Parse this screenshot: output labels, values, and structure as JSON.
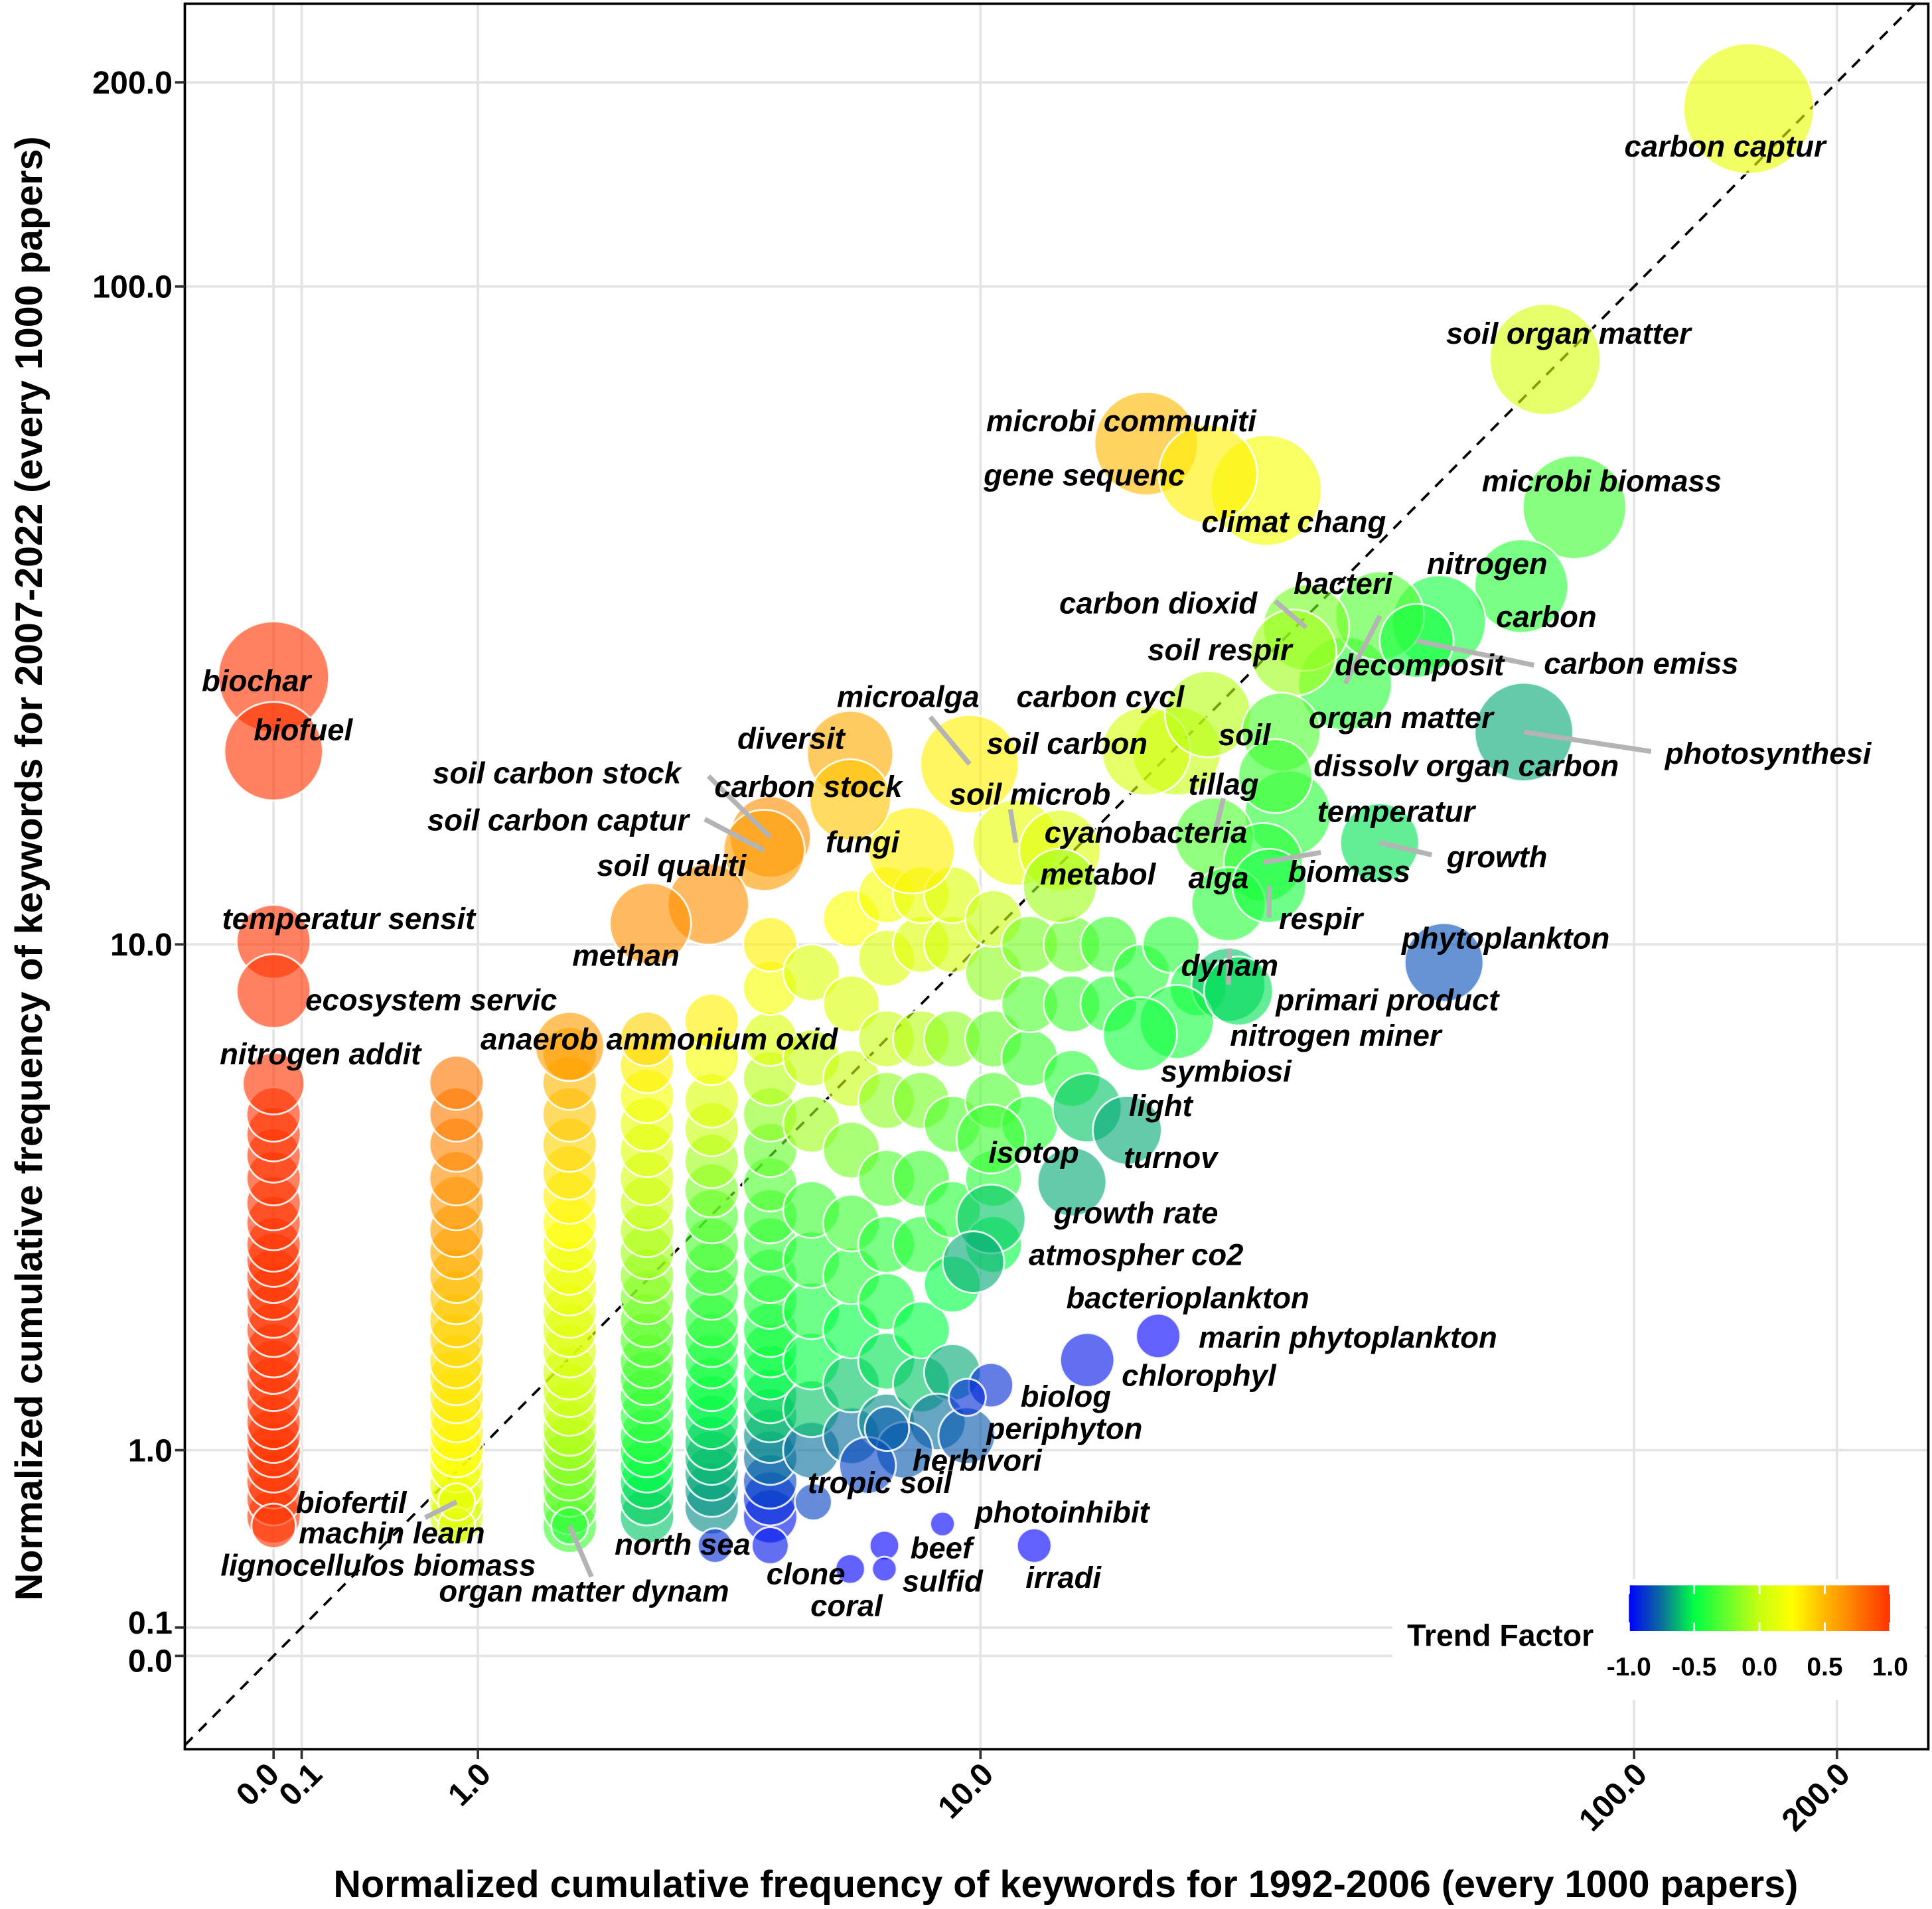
{
  "chart_data": {
    "type": "scatter",
    "title": "",
    "xlabel": "Normalized cumulative frequency of keywords for 1992-2006 (every 1000 papers)",
    "ylabel": "Normalized cumulative frequency of keywords for 2007-2022 (every 1000 papers)",
    "x_scale": "log10(x+1)",
    "y_scale": "log10(x+1)",
    "xlim": [
      -0.26,
      273
    ],
    "ylim": [
      -0.27,
      261
    ],
    "xticks": [
      0,
      0.1,
      1,
      10,
      100,
      200
    ],
    "xtick_labels": [
      "0.0",
      "0.1",
      "1.0",
      "10.0",
      "100.0",
      "200.0"
    ],
    "yticks": [
      0,
      0.1,
      1,
      10,
      100,
      200
    ],
    "ytick_labels": [
      "0.0",
      "0.1",
      "1.0",
      "10.0",
      "100.0",
      "200.0"
    ],
    "grid": true,
    "reference_line": "y = x (dashed)",
    "colorbar": {
      "title": "Trend Factor",
      "range": [
        -1,
        1
      ],
      "ticks": [
        -1,
        -0.5,
        0,
        0.5,
        1
      ],
      "tick_labels": [
        "-1.0",
        "-0.5",
        "0.0",
        "0.5",
        "1.0"
      ],
      "placement": "bottom-right",
      "colors": [
        "#0000ff",
        "#0a6f9c",
        "#00ff44",
        "#c8ff10",
        "#ffff00",
        "#ffb800",
        "#ff3300"
      ]
    },
    "labeled_points": [
      {
        "label": "carbon captur",
        "x": 148,
        "y": 183,
        "size": 10.6,
        "trend": 0.15
      },
      {
        "label": "soil organ matter",
        "x": 73.7,
        "y": 78,
        "size": 9,
        "trend": 0.05
      },
      {
        "label": "microbi biomass",
        "x": 81.5,
        "y": 47,
        "size": 8.4,
        "trend": -0.35
      },
      {
        "label": "microbi communiti",
        "x": 18.3,
        "y": 58.5,
        "size": 8.4,
        "trend": 0.5
      },
      {
        "label": "gene sequenc",
        "x": 22.8,
        "y": 52.7,
        "size": 8,
        "trend": 0.3
      },
      {
        "label": "climat chang",
        "x": 28,
        "y": 49.8,
        "size": 9,
        "trend": 0.2
      },
      {
        "label": "nitrogen",
        "x": 67.9,
        "y": 35.8,
        "size": 7.6,
        "trend": -0.4
      },
      {
        "label": "bacteri",
        "x": 41.6,
        "y": 32.3,
        "size": 7.2,
        "trend": -0.3
      },
      {
        "label": "carbon",
        "x": 51.1,
        "y": 31.6,
        "size": 7.6,
        "trend": -0.45
      },
      {
        "label": "carbon dioxid",
        "x": 32.2,
        "y": 31,
        "size": 7,
        "trend": -0.2
      },
      {
        "label": "soil respir",
        "x": 30.8,
        "y": 28.4,
        "size": 7,
        "trend": -0.1
      },
      {
        "label": "decomposit",
        "x": 36.9,
        "y": 25.5,
        "size": 7.6,
        "trend": -0.4
      },
      {
        "label": "carbon emiss",
        "x": 47.3,
        "y": 29.6,
        "size": 6,
        "trend": -0.45
      },
      {
        "label": "carbon cycl",
        "x": 22.8,
        "y": 22.9,
        "size": 7,
        "trend": -0.05
      },
      {
        "label": "organ matter",
        "x": 29.5,
        "y": 21.5,
        "size": 6.4,
        "trend": -0.3
      },
      {
        "label": "soil",
        "x": 20.4,
        "y": 20.1,
        "size": 7.2,
        "trend": 0.0
      },
      {
        "label": "photosynthesi",
        "x": 68.5,
        "y": 21.5,
        "size": 8,
        "trend": -0.65
      },
      {
        "label": "dissolv organ carbon",
        "x": 28.9,
        "y": 18.4,
        "size": 6,
        "trend": -0.35
      },
      {
        "label": "microalga",
        "x": 9.6,
        "y": 19.2,
        "size": 8,
        "trend": 0.3
      },
      {
        "label": "soil carbon",
        "x": 18.3,
        "y": 20.1,
        "size": 7.2,
        "trend": 0.05
      },
      {
        "label": "diversit",
        "x": 6.07,
        "y": 19.9,
        "size": 7,
        "trend": 0.55
      },
      {
        "label": "carbon stock",
        "x": 6.07,
        "y": 16.9,
        "size": 6.6,
        "trend": 0.45
      },
      {
        "label": "soil carbon stock",
        "x": 4.39,
        "y": 14.8,
        "size": 6.6,
        "trend": 0.65
      },
      {
        "label": "soil carbon captur",
        "x": 4.28,
        "y": 14.1,
        "size": 6.6,
        "trend": 0.6
      },
      {
        "label": "soil microb",
        "x": 11.4,
        "y": 14.5,
        "size": 7,
        "trend": 0.15
      },
      {
        "label": "fungi",
        "x": 7.71,
        "y": 14.1,
        "size": 7,
        "trend": 0.3
      },
      {
        "label": "cyanobacteria",
        "x": 13.4,
        "y": 14.1,
        "size": 6.6,
        "trend": 0.1
      },
      {
        "label": "soil qualiti",
        "x": 3.37,
        "y": 11.6,
        "size": 6.6,
        "trend": 0.65
      },
      {
        "label": "methan",
        "x": 2.59,
        "y": 10.8,
        "size": 6.6,
        "trend": 0.65
      },
      {
        "label": "tillag",
        "x": 23.3,
        "y": 14.8,
        "size": 6.4,
        "trend": -0.3
      },
      {
        "label": "temperatur",
        "x": 30.2,
        "y": 16.1,
        "size": 7,
        "trend": -0.4
      },
      {
        "label": "growth",
        "x": 41.6,
        "y": 14.5,
        "size": 6.4,
        "trend": -0.55
      },
      {
        "label": "biomass",
        "x": 27.7,
        "y": 13.5,
        "size": 6.4,
        "trend": -0.4
      },
      {
        "label": "metabol",
        "x": 13.4,
        "y": 12.4,
        "size": 6,
        "trend": -0.1
      },
      {
        "label": "alga",
        "x": 24.5,
        "y": 11.6,
        "size": 6,
        "trend": -0.4
      },
      {
        "label": "respir",
        "x": 28.3,
        "y": 12.4,
        "size": 6,
        "trend": -0.45
      },
      {
        "label": "phytoplankton",
        "x": 52,
        "y": 9.35,
        "size": 6.4,
        "trend": -0.82
      },
      {
        "label": "dynam",
        "x": 24.5,
        "y": 8.6,
        "size": 6,
        "trend": -0.6
      },
      {
        "label": "primari product",
        "x": 25.4,
        "y": 8.4,
        "size": 5.6,
        "trend": -0.55
      },
      {
        "label": "nitrogen miner",
        "x": 20.4,
        "y": 7.47,
        "size": 6,
        "trend": -0.45
      },
      {
        "label": "symbiosi",
        "x": 17.9,
        "y": 7.13,
        "size": 6,
        "trend": -0.45
      },
      {
        "label": "light",
        "x": 14.8,
        "y": 5.34,
        "size": 5.6,
        "trend": -0.6
      },
      {
        "label": "turnov",
        "x": 17.1,
        "y": 4.88,
        "size": 5.6,
        "trend": -0.65
      },
      {
        "label": "isotop",
        "x": 10.4,
        "y": 4.71,
        "size": 5.6,
        "trend": -0.35
      },
      {
        "label": "growth rate",
        "x": 14,
        "y": 3.94,
        "size": 5.6,
        "trend": -0.65
      },
      {
        "label": "atmospher co2",
        "x": 10.4,
        "y": 3.36,
        "size": 5.6,
        "trend": -0.6
      },
      {
        "label": "bacterioplankton",
        "x": 9.74,
        "y": 2.77,
        "size": 5,
        "trend": -0.65
      },
      {
        "label": "marin phytoplankton",
        "x": 19.1,
        "y": 1.94,
        "size": 3.6,
        "trend": -1.0
      },
      {
        "label": "chlorophyl",
        "x": 14.8,
        "y": 1.71,
        "size": 4.4,
        "trend": -0.95
      },
      {
        "label": "biolog",
        "x": 10.4,
        "y": 1.49,
        "size": 3.6,
        "trend": -0.9
      },
      {
        "label": "periphyton",
        "x": 9.52,
        "y": 1.39,
        "size": 3,
        "trend": -0.9
      },
      {
        "label": "herbivori",
        "x": 7.01,
        "y": 1.15,
        "size": 3.6,
        "trend": -0.8
      },
      {
        "label": "tropic soil",
        "x": 5.24,
        "y": 0.68,
        "size": 3,
        "trend": -0.85
      },
      {
        "label": "photoinhibit",
        "x": 8.67,
        "y": 0.56,
        "size": 2,
        "trend": -1.0
      },
      {
        "label": "beef",
        "x": 6.94,
        "y": 0.45,
        "size": 2.4,
        "trend": -1.0
      },
      {
        "label": "sulfid",
        "x": 6.94,
        "y": 0.34,
        "size": 2,
        "trend": -1.0
      },
      {
        "label": "coral",
        "x": 6.07,
        "y": 0.34,
        "size": 2.4,
        "trend": -1.0
      },
      {
        "label": "clone",
        "x": 4.39,
        "y": 0.45,
        "size": 3,
        "trend": -0.95
      },
      {
        "label": "north sea",
        "x": 3.47,
        "y": 0.45,
        "size": 2.8,
        "trend": -0.9
      },
      {
        "label": "irradi",
        "x": 12.2,
        "y": 0.45,
        "size": 2.8,
        "trend": -1.0
      },
      {
        "label": "biochar",
        "x": 0.0,
        "y": 26.1,
        "size": 9,
        "trend": 1.0
      },
      {
        "label": "biofuel",
        "x": 0.0,
        "y": 20.1,
        "size": 8,
        "trend": 1.0
      },
      {
        "label": "temperatur sensit",
        "x": 0.0,
        "y": 10.1,
        "size": 6,
        "trend": 1.0
      },
      {
        "label": "ecosystem servic",
        "x": 0.0,
        "y": 8.4,
        "size": 6,
        "trend": 1.0
      },
      {
        "label": "nitrogen addit",
        "x": 0.0,
        "y": 5.88,
        "size": 5,
        "trend": 1.0
      },
      {
        "label": "anaerob ammonium oxid",
        "x": 1.73,
        "y": 6.8,
        "size": 5.6,
        "trend": 0.6
      },
      {
        "label": "biofertil",
        "x": 0.86,
        "y": 0.55,
        "size": 3,
        "trend": 0.1
      },
      {
        "label": "machin learn",
        "x": 0.86,
        "y": 0.68,
        "size": 3,
        "trend": 0.15
      },
      {
        "label": "lignocellulos biomass",
        "x": 0.0,
        "y": 0.55,
        "size": 3.6,
        "trend": 1.0
      },
      {
        "label": "organ matter dynam",
        "x": 1.73,
        "y": 0.55,
        "size": 3,
        "trend": -0.4
      }
    ],
    "unlabeled_columns": [
      {
        "x": 0.0,
        "y": [
          0.6,
          0.7,
          0.8,
          0.9,
          1.0,
          1.1,
          1.2,
          1.35,
          1.5,
          1.65,
          1.8,
          2.0,
          2.2,
          2.4,
          2.6,
          2.8,
          3.0,
          3.3,
          3.6,
          4.0,
          4.4,
          4.8,
          5.2
        ],
        "trend": 1.0
      },
      {
        "x": 0.86,
        "y": [
          0.6,
          0.68,
          0.78,
          0.9,
          1.0,
          1.12,
          1.25,
          1.4,
          1.55,
          1.7,
          1.9,
          2.1,
          2.35,
          2.6,
          2.9,
          3.2,
          3.6,
          4.0,
          4.6,
          5.2,
          5.9
        ],
        "trend": [
          0.05,
          0.1,
          0.15,
          0.2,
          0.25,
          0.28,
          0.3,
          0.33,
          0.35,
          0.37,
          0.4,
          0.42,
          0.45,
          0.5,
          0.55,
          0.6,
          0.62,
          0.65,
          0.7,
          0.72,
          0.75
        ]
      },
      {
        "x": 1.73,
        "y": [
          0.55,
          0.65,
          0.75,
          0.85,
          0.95,
          1.05,
          1.15,
          1.3,
          1.45,
          1.6,
          1.8,
          2.0,
          2.2,
          2.45,
          2.7,
          3.0,
          3.3,
          3.7,
          4.1,
          4.6,
          5.2,
          5.9,
          6.6
        ],
        "trend": [
          -0.35,
          -0.3,
          -0.25,
          -0.2,
          -0.15,
          -0.1,
          -0.05,
          0,
          0.02,
          0.05,
          0.08,
          0.1,
          0.12,
          0.15,
          0.18,
          0.2,
          0.25,
          0.3,
          0.35,
          0.4,
          0.45,
          0.5,
          0.55
        ]
      },
      {
        "x": 2.55,
        "y": [
          0.6,
          0.7,
          0.8,
          0.9,
          1.0,
          1.1,
          1.25,
          1.4,
          1.55,
          1.7,
          1.9,
          2.1,
          2.35,
          2.6,
          2.9,
          3.2,
          3.6,
          4.0,
          4.5,
          5.0,
          5.6,
          6.3,
          7.0
        ],
        "trend": [
          -0.6,
          -0.58,
          -0.55,
          -0.5,
          -0.45,
          -0.42,
          -0.4,
          -0.38,
          -0.35,
          -0.32,
          -0.3,
          -0.25,
          -0.2,
          -0.15,
          -0.1,
          -0.05,
          0,
          0.05,
          0.1,
          0.15,
          0.2,
          0.3,
          0.4
        ]
      },
      {
        "x": 3.42,
        "y": [
          0.65,
          0.75,
          0.85,
          0.95,
          1.05,
          1.2,
          1.35,
          1.5,
          1.7,
          1.9,
          2.1,
          2.4,
          2.7,
          3.0,
          3.4,
          3.8,
          4.3,
          4.9,
          5.5,
          6.5,
          7.5
        ],
        "trend": [
          -0.7,
          -0.68,
          -0.65,
          -0.62,
          -0.6,
          -0.55,
          -0.5,
          -0.48,
          -0.45,
          -0.42,
          -0.4,
          -0.38,
          -0.35,
          -0.32,
          -0.3,
          -0.2,
          -0.1,
          0,
          0.1,
          0.2,
          0.3
        ]
      },
      {
        "x": 4.39,
        "y": [
          0.6,
          0.7,
          0.8,
          0.95,
          1.1,
          1.25,
          1.4,
          1.6,
          1.8,
          2.0,
          2.3,
          2.6,
          3.0,
          3.4,
          3.9,
          4.5,
          5.2,
          6.0,
          7.0,
          8.5,
          10.0
        ],
        "trend": [
          -0.95,
          -0.9,
          -0.85,
          -0.75,
          -0.7,
          -0.6,
          -0.55,
          -0.5,
          -0.48,
          -0.45,
          -0.42,
          -0.4,
          -0.38,
          -0.35,
          -0.3,
          -0.25,
          -0.15,
          -0.05,
          0.1,
          0.2,
          0.3
        ]
      }
    ],
    "unlabeled_points": [
      [
        5.2,
        1.0,
        -0.75
      ],
      [
        5.2,
        1.3,
        -0.6
      ],
      [
        5.2,
        1.7,
        -0.5
      ],
      [
        5.2,
        2.2,
        -0.45
      ],
      [
        5.2,
        2.8,
        -0.4
      ],
      [
        5.2,
        3.5,
        -0.35
      ],
      [
        5.2,
        5,
        -0.1
      ],
      [
        5.2,
        6.5,
        0
      ],
      [
        5.2,
        9,
        0.1
      ],
      [
        6.1,
        1.1,
        -0.75
      ],
      [
        6.1,
        1.5,
        -0.6
      ],
      [
        6.1,
        2,
        -0.5
      ],
      [
        6.1,
        2.6,
        -0.4
      ],
      [
        6.1,
        3.3,
        -0.35
      ],
      [
        6.1,
        4.5,
        -0.2
      ],
      [
        6.1,
        6,
        0
      ],
      [
        6.1,
        8,
        0.1
      ],
      [
        6.1,
        11,
        0.25
      ],
      [
        7,
        1.2,
        -0.7
      ],
      [
        7,
        1.7,
        -0.55
      ],
      [
        7,
        2.3,
        -0.45
      ],
      [
        7,
        3,
        -0.4
      ],
      [
        7,
        4,
        -0.3
      ],
      [
        7,
        5.5,
        -0.15
      ],
      [
        7,
        7,
        0
      ],
      [
        7,
        9.5,
        0.1
      ],
      [
        7,
        12,
        0.2
      ],
      [
        8,
        1.5,
        -0.6
      ],
      [
        8,
        2,
        -0.5
      ],
      [
        8,
        3,
        -0.4
      ],
      [
        8,
        4,
        -0.35
      ],
      [
        8,
        5.5,
        -0.2
      ],
      [
        8,
        7,
        -0.05
      ],
      [
        8,
        10,
        0.1
      ],
      [
        8,
        12,
        0.15
      ],
      [
        9,
        1.6,
        -0.65
      ],
      [
        9,
        2.5,
        -0.5
      ],
      [
        9,
        3.5,
        -0.4
      ],
      [
        9,
        5,
        -0.3
      ],
      [
        9,
        7,
        -0.15
      ],
      [
        9,
        10,
        0.05
      ],
      [
        9,
        12,
        0.1
      ],
      [
        10.5,
        3,
        -0.5
      ],
      [
        10.5,
        4,
        -0.4
      ],
      [
        10.5,
        5.5,
        -0.3
      ],
      [
        10.5,
        7,
        -0.25
      ],
      [
        10.5,
        9,
        -0.15
      ],
      [
        10.5,
        11,
        0
      ],
      [
        12,
        5,
        -0.4
      ],
      [
        12,
        6.5,
        -0.35
      ],
      [
        12,
        8,
        -0.3
      ],
      [
        12,
        10,
        -0.2
      ],
      [
        14,
        6,
        -0.4
      ],
      [
        14,
        8,
        -0.35
      ],
      [
        14,
        10,
        -0.25
      ],
      [
        16,
        8,
        -0.4
      ],
      [
        16,
        10,
        -0.35
      ],
      [
        18,
        9,
        -0.4
      ],
      [
        20,
        10,
        -0.4
      ],
      [
        22,
        8.5,
        -0.45
      ],
      [
        8.5,
        1.2,
        -0.75
      ],
      [
        7.5,
        1.0,
        -0.8
      ],
      [
        6.5,
        0.9,
        -0.85
      ],
      [
        9.5,
        1.1,
        -0.8
      ]
    ]
  }
}
